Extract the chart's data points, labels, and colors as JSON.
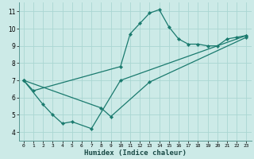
{
  "xlabel": "Humidex (Indice chaleur)",
  "background_color": "#cceae7",
  "grid_color": "#aad6d2",
  "line_color": "#1a7a6e",
  "xlim": [
    -0.5,
    23.5
  ],
  "ylim": [
    3.5,
    11.5
  ],
  "xticks": [
    0,
    1,
    2,
    3,
    4,
    5,
    6,
    7,
    8,
    9,
    10,
    11,
    12,
    13,
    14,
    15,
    16,
    17,
    18,
    19,
    20,
    21,
    22,
    23
  ],
  "yticks": [
    4,
    5,
    6,
    7,
    8,
    9,
    10,
    11
  ],
  "curves": [
    {
      "x": [
        0,
        1,
        10,
        11,
        12,
        13,
        14,
        15,
        16,
        17,
        18,
        19,
        20,
        21,
        22,
        23
      ],
      "y": [
        7.0,
        6.4,
        7.8,
        9.7,
        10.3,
        10.9,
        11.1,
        10.1,
        9.4,
        9.1,
        9.1,
        9.0,
        9.0,
        9.4,
        9.5,
        9.6
      ]
    },
    {
      "x": [
        0,
        2,
        3,
        4,
        5,
        7,
        10,
        23
      ],
      "y": [
        7.0,
        5.6,
        5.0,
        4.5,
        4.6,
        4.2,
        7.0,
        9.6
      ]
    },
    {
      "x": [
        0,
        8,
        9,
        13,
        23
      ],
      "y": [
        7.0,
        5.4,
        4.9,
        6.9,
        9.5
      ]
    }
  ]
}
